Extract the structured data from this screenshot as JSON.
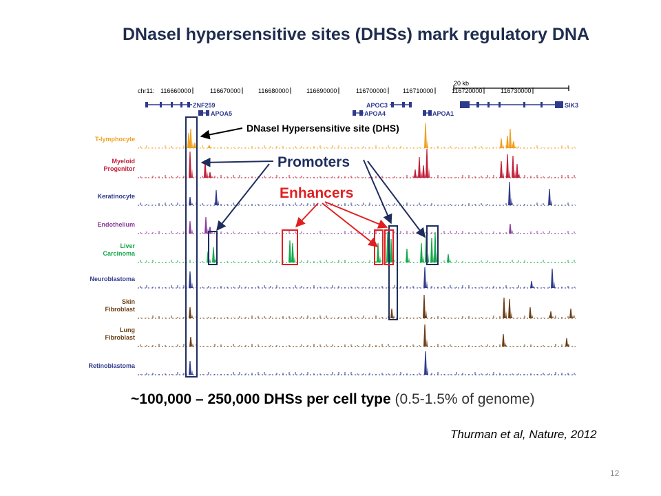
{
  "slide": {
    "title": "DNaseI hypersensitive sites (DHSs) mark regulatory DNA",
    "summary_bold": "~100,000 – 250,000 DHSs per cell type",
    "summary_rest": "(0.5-1.5% of genome)",
    "citation": "Thurman et al, Nature, 2012",
    "page_number": "12"
  },
  "browser": {
    "scale_label": "20 kb",
    "chrom_label": "chr11:",
    "coordinates": [
      "116660000",
      "116670000",
      "116680000",
      "116690000",
      "116700000",
      "116710000",
      "116720000",
      "116730000"
    ],
    "genes": [
      "ZNF259",
      "APOA5",
      "APOC3",
      "APOA4",
      "APOA1",
      "SIK3"
    ],
    "tracks": [
      {
        "label": [
          "T-lymphocyte"
        ],
        "color": "#f0a020"
      },
      {
        "label": [
          "Myeloid",
          "Progenitor"
        ],
        "color": "#c0203a"
      },
      {
        "label": [
          "Keratinocyte"
        ],
        "color": "#2e3a8c"
      },
      {
        "label": [
          "Endothelium"
        ],
        "color": "#8a3b9a"
      },
      {
        "label": [
          "Liver",
          "Carcinoma"
        ],
        "color": "#14a84a"
      },
      {
        "label": [
          "Neuroblastoma"
        ],
        "color": "#2e3a8c"
      },
      {
        "label": [
          "Skin",
          "Fibroblast"
        ],
        "color": "#6b3d14"
      },
      {
        "label": [
          "Lung",
          "Fibroblast"
        ],
        "color": "#6b3d14"
      },
      {
        "label": [
          "Retinoblastoma"
        ],
        "color": "#2e3a8c"
      }
    ]
  },
  "annotations": {
    "dhs": "DNaseI Hypersensitive site (DHS)",
    "promoters": "Promoters",
    "enhancers": "Enhancers"
  },
  "colors": {
    "title": "#1f2d4e",
    "promoter_box": "#1f2d5e",
    "enhancer_box": "#e02020",
    "gene": "#2e3a8c"
  }
}
